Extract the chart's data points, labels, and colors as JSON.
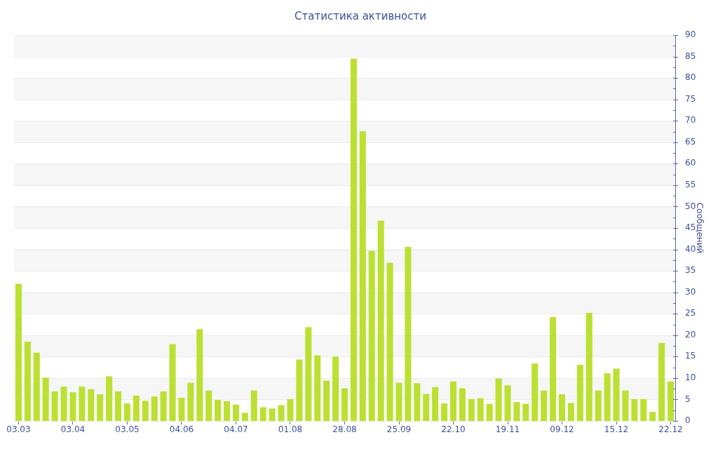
{
  "chart_data": {
    "type": "bar",
    "title": "Статистика активности",
    "ylabel": "Сообщений",
    "categories": [
      "03.03",
      null,
      null,
      null,
      null,
      null,
      "03.04",
      null,
      null,
      null,
      null,
      null,
      "03.05",
      null,
      null,
      null,
      null,
      null,
      "04.06",
      null,
      null,
      null,
      null,
      null,
      "04.07",
      null,
      null,
      null,
      null,
      null,
      "01.08",
      null,
      null,
      null,
      null,
      null,
      "28.08",
      null,
      null,
      null,
      null,
      null,
      "25.09",
      null,
      null,
      null,
      null,
      null,
      "22.10",
      null,
      null,
      null,
      null,
      null,
      "19.11",
      null,
      null,
      null,
      null,
      null,
      "09.12",
      null,
      null,
      null,
      null,
      null,
      "15.12",
      null,
      null,
      null,
      null,
      null,
      "22.12"
    ],
    "values": [
      32,
      18.5,
      15.9,
      10.1,
      6.9,
      8,
      6.7,
      8,
      7.4,
      6.2,
      10.4,
      6.9,
      4.1,
      5.9,
      4.7,
      5.7,
      6.9,
      17.9,
      5.4,
      8.9,
      21.4,
      7.1,
      4.9,
      4.6,
      3.8,
      1.9,
      7.1,
      3.2,
      2.9,
      3.7,
      5.1,
      14.3,
      21.9,
      15.3,
      9.4,
      15,
      7.6,
      84.5,
      67.6,
      39.7,
      46.7,
      36.9,
      8.9,
      40.6,
      8.8,
      6.3,
      7.9,
      4.1,
      9.2,
      7.6,
      5.1,
      5.3,
      4,
      9.9,
      8.3,
      4.4,
      4,
      13.4,
      7.1,
      24.2,
      6.2,
      4.2,
      13.1,
      25.2,
      7.1,
      11.1,
      12.2,
      7.1,
      5.1,
      5.1,
      2.1,
      18.2,
      9.2
    ],
    "color": "#bce032",
    "ylim": [
      0,
      90
    ],
    "yticks": [
      0,
      {
        "value": 2.5,
        "label": null
      },
      5,
      {
        "value": 7.5,
        "label": null
      },
      10,
      {
        "value": 12.5,
        "label": null
      },
      15,
      {
        "value": 17.5,
        "label": null
      },
      20,
      {
        "value": 22.5,
        "label": null
      },
      25,
      {
        "value": 27.5,
        "label": null
      },
      30,
      {
        "value": 32.5,
        "label": null
      },
      35,
      {
        "value": 37.5,
        "label": null
      },
      40,
      {
        "value": 42.5,
        "label": null
      },
      45,
      {
        "value": 47.5,
        "label": null
      },
      50,
      {
        "value": 52.5,
        "label": null
      },
      55,
      {
        "value": 57.5,
        "label": null
      },
      60,
      {
        "value": 62.5,
        "label": null
      },
      65,
      {
        "value": 67.5,
        "label": null
      },
      70,
      {
        "value": 72.5,
        "label": null
      },
      75,
      {
        "value": 77.5,
        "label": null
      },
      80,
      {
        "value": 82.5,
        "label": null
      },
      85,
      {
        "value": 87.5,
        "label": null
      },
      90
    ],
    "grid": "y"
  }
}
